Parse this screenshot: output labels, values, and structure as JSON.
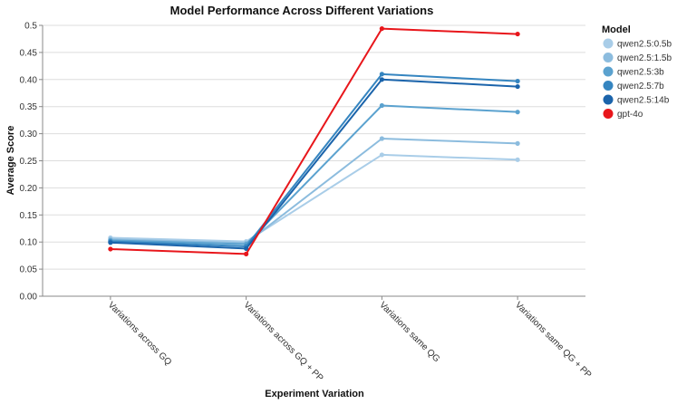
{
  "chart_data": {
    "type": "line",
    "title": "Model Performance Across Different Variations",
    "xlabel": "Experiment Variation",
    "ylabel": "Average Score",
    "ylim": [
      0,
      0.5
    ],
    "yticks": [
      "0.00",
      "0.05",
      "0.10",
      "0.15",
      "0.20",
      "0.25",
      "0.30",
      "0.35",
      "0.40",
      "0.45",
      "0.5"
    ],
    "grid": true,
    "legend_title": "Model",
    "legend_position": "top-right",
    "categories": [
      "Variations across GQ",
      "Variations across GQ + PP",
      "Variations same QG",
      "Variations same QG + PP"
    ],
    "series": [
      {
        "name": "qwen2.5:0.5b",
        "color": "#a9cde8",
        "values": [
          0.108,
          0.101,
          0.261,
          0.252
        ]
      },
      {
        "name": "qwen2.5:1.5b",
        "color": "#8cbcde",
        "values": [
          0.105,
          0.098,
          0.291,
          0.282
        ]
      },
      {
        "name": "qwen2.5:3b",
        "color": "#5ba2cf",
        "values": [
          0.103,
          0.096,
          0.352,
          0.34
        ]
      },
      {
        "name": "qwen2.5:7b",
        "color": "#3585c0",
        "values": [
          0.101,
          0.092,
          0.41,
          0.397
        ]
      },
      {
        "name": "qwen2.5:14b",
        "color": "#1b64ab",
        "values": [
          0.099,
          0.088,
          0.4,
          0.387
        ]
      },
      {
        "name": "gpt-4o",
        "color": "#e8161b",
        "values": [
          0.087,
          0.078,
          0.494,
          0.484
        ]
      }
    ]
  }
}
